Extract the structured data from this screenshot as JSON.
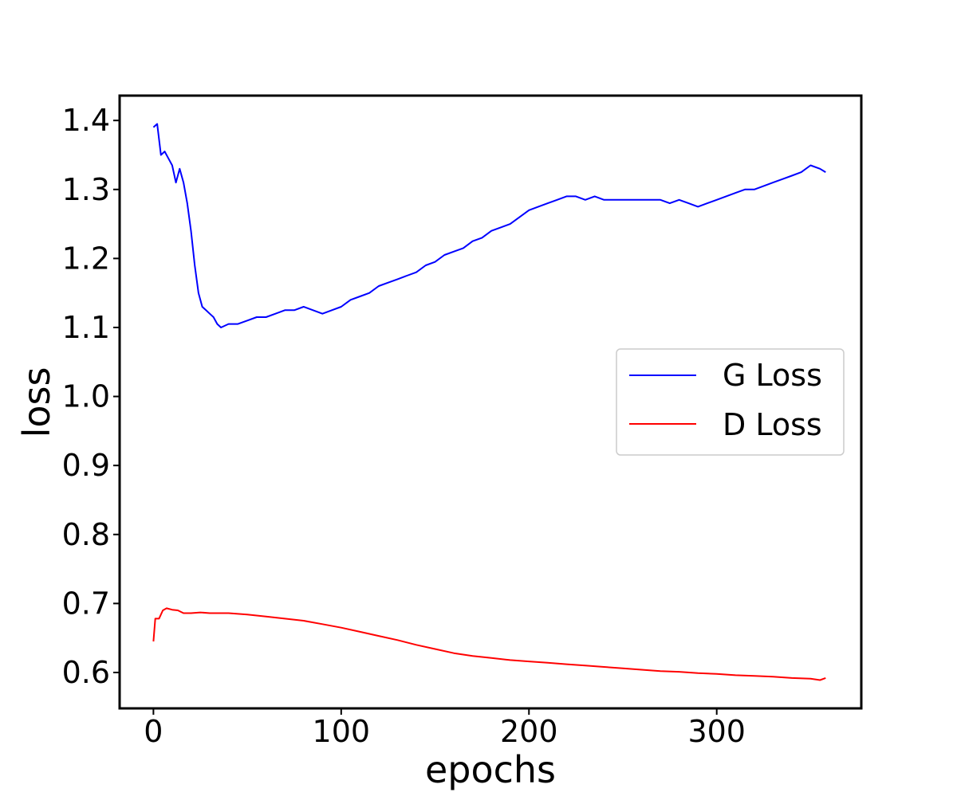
{
  "chart_data": {
    "type": "line",
    "title": "",
    "xlabel": "epochs",
    "ylabel": "loss",
    "xlim": [
      -18,
      377
    ],
    "ylim": [
      0.548,
      1.436
    ],
    "xticks": [
      0,
      100,
      200,
      300
    ],
    "yticks": [
      0.6,
      0.7,
      0.8,
      0.9,
      1.0,
      1.1,
      1.2,
      1.3,
      1.4
    ],
    "xtick_labels": [
      "0",
      "100",
      "200",
      "300"
    ],
    "ytick_labels": [
      "0.6",
      "0.7",
      "0.8",
      "0.9",
      "1.0",
      "1.1",
      "1.2",
      "1.3",
      "1.4"
    ],
    "grid": false,
    "legend_position": "center-right",
    "series": [
      {
        "name": "G Loss",
        "color": "#0000ff",
        "points": [
          [
            0,
            1.39
          ],
          [
            2,
            1.395
          ],
          [
            4,
            1.35
          ],
          [
            6,
            1.355
          ],
          [
            8,
            1.345
          ],
          [
            10,
            1.335
          ],
          [
            12,
            1.31
          ],
          [
            14,
            1.33
          ],
          [
            16,
            1.31
          ],
          [
            18,
            1.28
          ],
          [
            20,
            1.24
          ],
          [
            22,
            1.19
          ],
          [
            24,
            1.15
          ],
          [
            26,
            1.13
          ],
          [
            28,
            1.125
          ],
          [
            30,
            1.12
          ],
          [
            32,
            1.115
          ],
          [
            34,
            1.105
          ],
          [
            36,
            1.1
          ],
          [
            40,
            1.105
          ],
          [
            45,
            1.105
          ],
          [
            50,
            1.11
          ],
          [
            55,
            1.115
          ],
          [
            60,
            1.115
          ],
          [
            65,
            1.12
          ],
          [
            70,
            1.125
          ],
          [
            75,
            1.125
          ],
          [
            80,
            1.13
          ],
          [
            85,
            1.125
          ],
          [
            90,
            1.12
          ],
          [
            95,
            1.125
          ],
          [
            100,
            1.13
          ],
          [
            105,
            1.14
          ],
          [
            110,
            1.145
          ],
          [
            115,
            1.15
          ],
          [
            120,
            1.16
          ],
          [
            125,
            1.165
          ],
          [
            130,
            1.17
          ],
          [
            135,
            1.175
          ],
          [
            140,
            1.18
          ],
          [
            145,
            1.19
          ],
          [
            150,
            1.195
          ],
          [
            155,
            1.205
          ],
          [
            160,
            1.21
          ],
          [
            165,
            1.215
          ],
          [
            170,
            1.225
          ],
          [
            175,
            1.23
          ],
          [
            180,
            1.24
          ],
          [
            185,
            1.245
          ],
          [
            190,
            1.25
          ],
          [
            195,
            1.26
          ],
          [
            200,
            1.27
          ],
          [
            205,
            1.275
          ],
          [
            210,
            1.28
          ],
          [
            215,
            1.285
          ],
          [
            220,
            1.29
          ],
          [
            225,
            1.29
          ],
          [
            230,
            1.285
          ],
          [
            235,
            1.29
          ],
          [
            240,
            1.285
          ],
          [
            245,
            1.285
          ],
          [
            250,
            1.285
          ],
          [
            255,
            1.285
          ],
          [
            260,
            1.285
          ],
          [
            265,
            1.285
          ],
          [
            270,
            1.285
          ],
          [
            275,
            1.28
          ],
          [
            280,
            1.285
          ],
          [
            285,
            1.28
          ],
          [
            290,
            1.275
          ],
          [
            295,
            1.28
          ],
          [
            300,
            1.285
          ],
          [
            305,
            1.29
          ],
          [
            310,
            1.295
          ],
          [
            315,
            1.3
          ],
          [
            320,
            1.3
          ],
          [
            325,
            1.305
          ],
          [
            330,
            1.31
          ],
          [
            335,
            1.315
          ],
          [
            340,
            1.32
          ],
          [
            345,
            1.325
          ],
          [
            350,
            1.335
          ],
          [
            355,
            1.33
          ],
          [
            358,
            1.325
          ]
        ]
      },
      {
        "name": "D Loss",
        "color": "#ff0000",
        "points": [
          [
            0,
            0.645
          ],
          [
            1,
            0.678
          ],
          [
            3,
            0.678
          ],
          [
            5,
            0.69
          ],
          [
            7,
            0.693
          ],
          [
            10,
            0.691
          ],
          [
            13,
            0.69
          ],
          [
            16,
            0.686
          ],
          [
            20,
            0.686
          ],
          [
            25,
            0.687
          ],
          [
            30,
            0.686
          ],
          [
            40,
            0.686
          ],
          [
            50,
            0.684
          ],
          [
            60,
            0.681
          ],
          [
            70,
            0.678
          ],
          [
            80,
            0.675
          ],
          [
            90,
            0.67
          ],
          [
            100,
            0.665
          ],
          [
            110,
            0.659
          ],
          [
            120,
            0.653
          ],
          [
            130,
            0.647
          ],
          [
            140,
            0.64
          ],
          [
            150,
            0.634
          ],
          [
            160,
            0.628
          ],
          [
            170,
            0.624
          ],
          [
            180,
            0.621
          ],
          [
            190,
            0.618
          ],
          [
            200,
            0.616
          ],
          [
            210,
            0.614
          ],
          [
            220,
            0.612
          ],
          [
            230,
            0.61
          ],
          [
            240,
            0.608
          ],
          [
            250,
            0.606
          ],
          [
            260,
            0.604
          ],
          [
            270,
            0.602
          ],
          [
            280,
            0.601
          ],
          [
            290,
            0.599
          ],
          [
            300,
            0.598
          ],
          [
            310,
            0.596
          ],
          [
            320,
            0.595
          ],
          [
            330,
            0.594
          ],
          [
            340,
            0.592
          ],
          [
            350,
            0.591
          ],
          [
            355,
            0.589
          ],
          [
            358,
            0.592
          ]
        ]
      }
    ]
  }
}
